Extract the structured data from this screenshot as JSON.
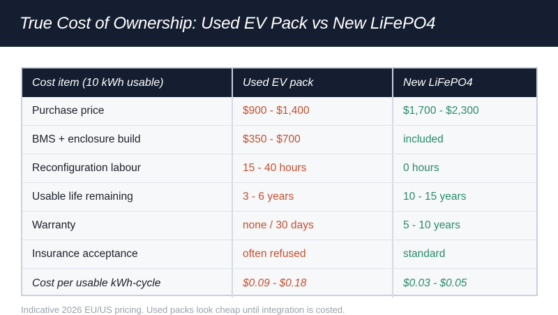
{
  "title": "True Cost of Ownership: Used EV Pack vs New LiFePO4",
  "table": {
    "headers": [
      "Cost item (10 kWh usable)",
      "Used EV pack",
      "New LiFePO4"
    ],
    "rows": [
      [
        "Purchase price",
        "$900 - $1,400",
        "$1,700 - $2,300"
      ],
      [
        "BMS + enclosure build",
        "$350 - $700",
        "included"
      ],
      [
        "Reconfiguration labour",
        "15 - 40 hours",
        "0 hours"
      ],
      [
        "Usable life remaining",
        "3 - 6 years",
        "10 - 15 years"
      ],
      [
        "Warranty",
        "none / 30 days",
        "5 - 10 years"
      ],
      [
        "Insurance acceptance",
        "often refused",
        "standard"
      ],
      [
        "Cost per usable kWh-cycle",
        "$0.09 - $0.18",
        "$0.03 - $0.05"
      ]
    ]
  },
  "footnote": "Indicative 2026 EU/US pricing. Used packs look cheap until integration is costed.",
  "colors": {
    "header_bg": "#141e30",
    "used_text": "#c4502f",
    "new_text": "#2a8a6a"
  }
}
